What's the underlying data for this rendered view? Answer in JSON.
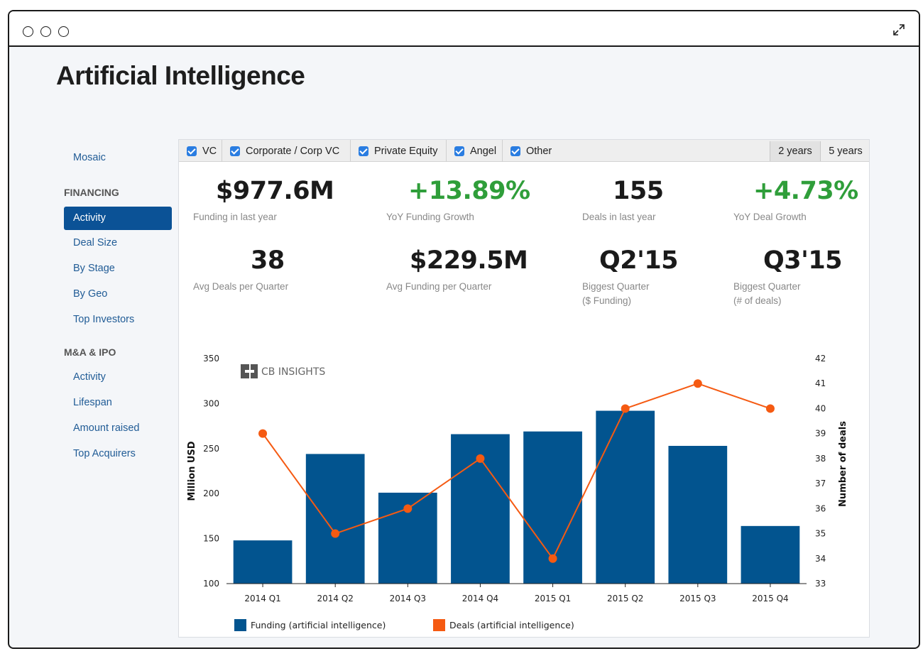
{
  "page": {
    "title": "Artificial Intelligence"
  },
  "sidebar": {
    "top": "Mosaic",
    "financing_head": "FINANCING",
    "financing": [
      "Activity",
      "Deal Size",
      "By Stage",
      "By Geo",
      "Top Investors"
    ],
    "mna_head": "M&A & IPO",
    "mna": [
      "Activity",
      "Lifespan",
      "Amount raised",
      "Top Acquirers"
    ]
  },
  "filters": [
    "VC",
    "Corporate / Corp VC",
    "Private Equity",
    "Angel",
    "Other"
  ],
  "ranges": [
    "2 years",
    "5 years"
  ],
  "stats": {
    "funding_last_year": {
      "value": "$977.6M",
      "label": "Funding in last year"
    },
    "yoy_funding_growth": {
      "value": "+13.89%",
      "label": "YoY Funding Growth"
    },
    "deals_last_year": {
      "value": "155",
      "label": "Deals in last year"
    },
    "yoy_deal_growth": {
      "value": "+4.73%",
      "label": "YoY Deal Growth"
    },
    "avg_deals": {
      "value": "38",
      "label": "Avg Deals per Quarter"
    },
    "avg_funding": {
      "value": "$229.5M",
      "label": "Avg Funding per Quarter"
    },
    "biggest_funding": {
      "value": "Q2'15",
      "label1": "Biggest Quarter",
      "label2": "($ Funding)"
    },
    "biggest_deals": {
      "value": "Q3'15",
      "label1": "Biggest Quarter",
      "label2": "(# of deals)"
    }
  },
  "colors": {
    "accent": "#0b5296",
    "bar": "#02548f",
    "line": "#f55a12",
    "green": "#2f9e3a"
  },
  "chart_data": {
    "type": "bar",
    "categories": [
      "2014 Q1",
      "2014 Q2",
      "2014 Q3",
      "2014 Q4",
      "2015 Q1",
      "2015 Q2",
      "2015 Q3",
      "2015 Q4"
    ],
    "series": [
      {
        "name": "Funding (artificial intelligence)",
        "type": "bar",
        "axis": "left",
        "values": [
          148,
          244,
          201,
          266,
          269,
          292,
          253,
          164
        ]
      },
      {
        "name": "Deals (artificial intelligence)",
        "type": "line",
        "axis": "right",
        "values": [
          39,
          35,
          36,
          38,
          34,
          40,
          41,
          40
        ]
      }
    ],
    "ylabel": "Million USD",
    "y2label": "Number of deals",
    "ylim": [
      100,
      350
    ],
    "y2lim": [
      33,
      42
    ],
    "yticks": [
      "100",
      "150",
      "200",
      "250",
      "300",
      "350"
    ],
    "y2ticks": [
      "33",
      "34",
      "35",
      "36",
      "37",
      "38",
      "39",
      "40",
      "41",
      "42"
    ],
    "watermark": "CB INSIGHTS"
  }
}
